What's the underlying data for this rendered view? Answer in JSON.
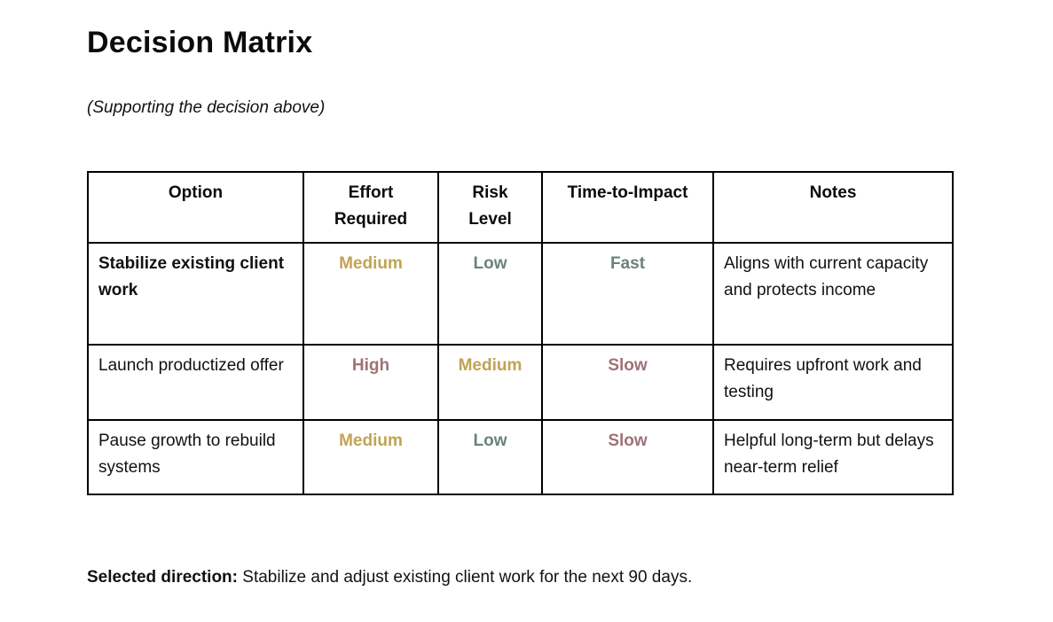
{
  "document": {
    "title": "Decision Matrix",
    "subtitle": "(Supporting the decision above)"
  },
  "table": {
    "headers": [
      "Option",
      "Effort Required",
      "Risk Level",
      "Time-to-Impact",
      "Notes"
    ],
    "rows": [
      {
        "option": "Stabilize existing client work",
        "effort": {
          "label": "Medium",
          "color": "#C2A255"
        },
        "risk": {
          "label": "Low",
          "color": "#6B8278"
        },
        "time": {
          "label": "Fast",
          "color": "#6B8278"
        },
        "notes": "Aligns with current capacity and protects income"
      },
      {
        "option": "Launch productized offer",
        "effort": {
          "label": "High",
          "color": "#9E7276"
        },
        "risk": {
          "label": "Medium",
          "color": "#C2A255"
        },
        "time": {
          "label": "Slow",
          "color": "#9E7276"
        },
        "notes": "Requires upfront work and testing"
      },
      {
        "option": "Pause growth to rebuild systems",
        "effort": {
          "label": "Medium",
          "color": "#C2A255"
        },
        "risk": {
          "label": "Low",
          "color": "#6B8278"
        },
        "time": {
          "label": "Slow",
          "color": "#9E7276"
        },
        "notes": "Helpful long-term but delays near-term relief"
      }
    ]
  },
  "footer": {
    "label": "Selected direction:",
    "text": "Stabilize and adjust existing client work for the next 90 days."
  },
  "colors": {
    "effort_gold": "#C2A255",
    "risk_green": "#6B8278",
    "slow_mauve": "#9E7276",
    "border": "#000000",
    "text": "#111111",
    "background": "#FFFFFF"
  }
}
